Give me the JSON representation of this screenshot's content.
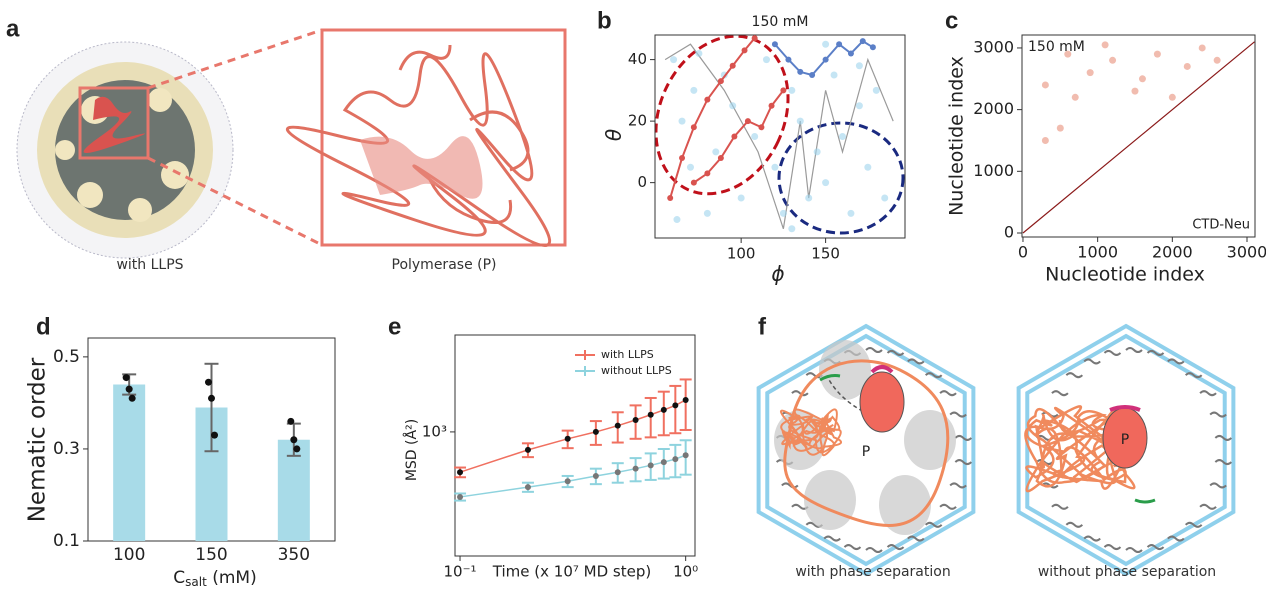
{
  "panels": {
    "a": "a",
    "b": "b",
    "c": "c",
    "d": "d",
    "e": "e",
    "f": "f"
  },
  "panel_a": {
    "left_caption": "with LLPS",
    "right_caption": "Polymerase (P)"
  },
  "panel_f": {
    "left_label": "P",
    "right_label": "P",
    "left_caption": "with phase separation",
    "right_caption": "without phase separation"
  },
  "chart_data": [
    {
      "type": "scatter",
      "title": "150 mM",
      "xlabel": "ϕ",
      "ylabel": "θ",
      "xlim": [
        49,
        197
      ],
      "ylim": [
        -18,
        48
      ],
      "xticks": [
        100,
        150
      ],
      "yticks": [
        0,
        20,
        40
      ],
      "series": [
        {
          "style": "line",
          "color": "#9a9a9a",
          "x": [
            55,
            70,
            90,
            110,
            125,
            135,
            140,
            150,
            160,
            175,
            190
          ],
          "y": [
            40,
            45,
            30,
            10,
            -15,
            20,
            -5,
            30,
            10,
            40,
            20
          ]
        },
        {
          "style": "points",
          "color": "#9fd3ec",
          "x": [
            60,
            65,
            70,
            72,
            80,
            85,
            90,
            95,
            100,
            108,
            115,
            120,
            125,
            130,
            135,
            140,
            145,
            150,
            155,
            160,
            165,
            170,
            175,
            180,
            185,
            62,
            75,
            130,
            150,
            170
          ],
          "y": [
            40,
            20,
            5,
            30,
            -10,
            10,
            35,
            25,
            -5,
            15,
            40,
            5,
            -10,
            30,
            20,
            -5,
            10,
            0,
            35,
            15,
            -10,
            25,
            5,
            30,
            -5,
            -12,
            42,
            -15,
            45,
            38
          ]
        },
        {
          "style": "trajectory",
          "color": "#d9534f",
          "x": [
            58,
            65,
            72,
            80,
            88,
            95,
            102,
            108
          ],
          "y": [
            -5,
            8,
            18,
            27,
            33,
            38,
            43,
            47
          ]
        },
        {
          "style": "trajectory",
          "color": "#d9534f",
          "x": [
            72,
            80,
            88,
            96,
            104,
            112,
            118,
            125
          ],
          "y": [
            0,
            3,
            8,
            15,
            20,
            18,
            25,
            30
          ]
        },
        {
          "style": "trajectory",
          "color": "#5b7fc7",
          "x": [
            120,
            128,
            135,
            142,
            150,
            158,
            165,
            172,
            178
          ],
          "y": [
            45,
            40,
            36,
            35,
            40,
            45,
            42,
            46,
            44
          ]
        }
      ]
    },
    {
      "type": "scatter",
      "title": "150 mM",
      "annotation": "CTD-Neu",
      "xlabel": "Nucleotide index",
      "ylabel": "Nucleotide index",
      "xlim": [
        -13,
        3107
      ],
      "ylim": [
        -65,
        3210
      ],
      "xticks": [
        0,
        1000,
        2000,
        3000
      ],
      "yticks": [
        0,
        1000,
        2000,
        3000
      ],
      "series": [
        {
          "style": "line",
          "color": "#8b1a1a",
          "x": [
            0,
            3100
          ],
          "y": [
            0,
            3100
          ]
        },
        {
          "style": "points",
          "color": "#e8907a",
          "x": [
            300,
            500,
            600,
            900,
            1200,
            1500,
            1600,
            1800,
            2000,
            2200,
            2400,
            2600,
            300,
            700,
            1100
          ],
          "y": [
            1500,
            1700,
            2900,
            2600,
            2800,
            2300,
            2500,
            2900,
            2200,
            2700,
            3000,
            2800,
            2400,
            2200,
            3050
          ]
        }
      ]
    },
    {
      "type": "bar",
      "ylabel": "Nematic order",
      "xlabel": {
        "symbol": "C",
        "subscript": "salt",
        "unit": " (mM)"
      },
      "categories": [
        "100",
        "150",
        "350"
      ],
      "values": [
        0.44,
        0.39,
        0.32
      ],
      "errors": [
        0.022,
        0.095,
        0.035
      ],
      "points": [
        [
          0.455,
          0.43,
          0.41
        ],
        [
          0.445,
          0.41,
          0.33
        ],
        [
          0.36,
          0.32,
          0.3
        ]
      ],
      "color": "#a8dbe8",
      "ylim": [
        0.1,
        0.541
      ],
      "yticks": [
        0.1,
        0.3,
        0.5
      ]
    },
    {
      "type": "line",
      "xlabel": "Time (x 10⁷ MD step)",
      "ylabel": "MSD (Å²)",
      "xscale": "log",
      "yscale": "log",
      "legend": "upper right",
      "x": [
        0.1,
        0.2,
        0.3,
        0.4,
        0.5,
        0.6,
        0.7,
        0.8,
        0.9,
        1.0
      ],
      "xlim": [
        0.095,
        1.1
      ],
      "ylim": [
        150,
        4400
      ],
      "xticks": [
        {
          "value": 0.1,
          "label": "10⁻¹"
        },
        {
          "value": 1,
          "label": "10⁰"
        }
      ],
      "yticks": [
        {
          "value": 1000,
          "label": "10³"
        }
      ],
      "series": [
        {
          "name": "with LLPS",
          "color": "#f07060",
          "values": [
            540,
            760,
            900,
            1000,
            1100,
            1200,
            1300,
            1400,
            1500,
            1630
          ],
          "errors": [
            40,
            80,
            120,
            180,
            250,
            300,
            380,
            450,
            520,
            600
          ]
        },
        {
          "name": "without LLPS",
          "color": "#8ed3de",
          "values": [
            370,
            430,
            470,
            510,
            540,
            570,
            600,
            630,
            660,
            700
          ],
          "errors": [
            20,
            30,
            40,
            60,
            80,
            100,
            120,
            140,
            160,
            180
          ]
        }
      ]
    }
  ]
}
